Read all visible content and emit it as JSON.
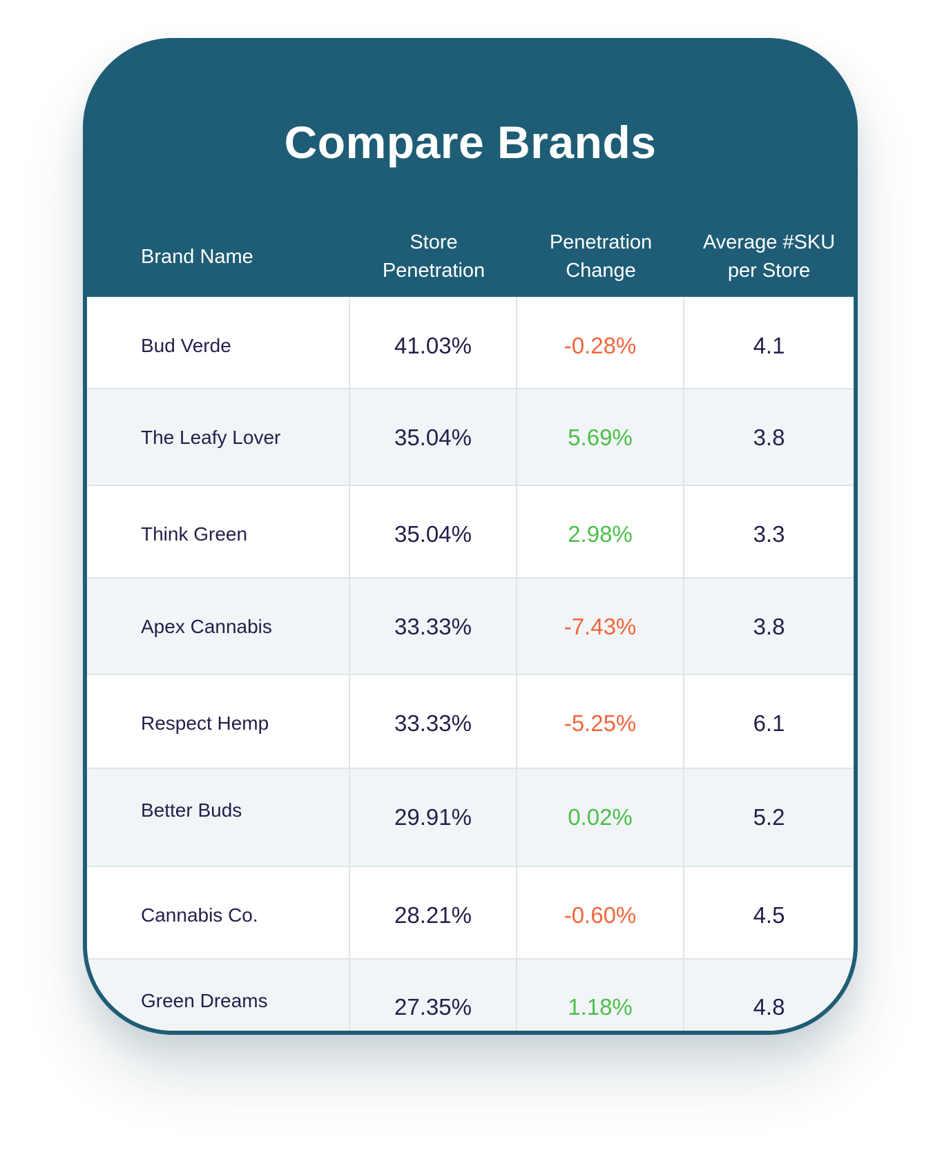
{
  "title": "Compare Brands",
  "columns": {
    "brand": "Brand Name",
    "store_penetration": [
      "Store",
      "Penetration"
    ],
    "penetration_change": [
      "Penetration",
      "Change"
    ],
    "avg_sku": [
      "Average #SKU",
      "per Store"
    ]
  },
  "colors": {
    "header_bg": "#1e5d75",
    "negative": "#f0653c",
    "positive": "#4cbf4a",
    "text": "#241f4a"
  },
  "rows": [
    {
      "brand": "Bud Verde",
      "store_penetration": "41.03%",
      "penetration_change": "-0.28%",
      "trend": "negative",
      "avg_sku": "4.1"
    },
    {
      "brand": "The Leafy Lover",
      "store_penetration": "35.04%",
      "penetration_change": "5.69%",
      "trend": "positive",
      "avg_sku": "3.8"
    },
    {
      "brand": "Think Green",
      "store_penetration": "35.04%",
      "penetration_change": "2.98%",
      "trend": "positive",
      "avg_sku": "3.3"
    },
    {
      "brand": "Apex Cannabis",
      "store_penetration": "33.33%",
      "penetration_change": "-7.43%",
      "trend": "negative",
      "avg_sku": "3.8"
    },
    {
      "brand": "Respect Hemp",
      "store_penetration": "33.33%",
      "penetration_change": "-5.25%",
      "trend": "negative",
      "avg_sku": "6.1"
    },
    {
      "brand": "Better Buds",
      "store_penetration": "29.91%",
      "penetration_change": "0.02%",
      "trend": "positive",
      "avg_sku": "5.2"
    },
    {
      "brand": "Cannabis Co.",
      "store_penetration": "28.21%",
      "penetration_change": "-0.60%",
      "trend": "negative",
      "avg_sku": "4.5"
    },
    {
      "brand": "Green Dreams",
      "store_penetration": "27.35%",
      "penetration_change": "1.18%",
      "trend": "positive",
      "avg_sku": "4.8"
    }
  ]
}
